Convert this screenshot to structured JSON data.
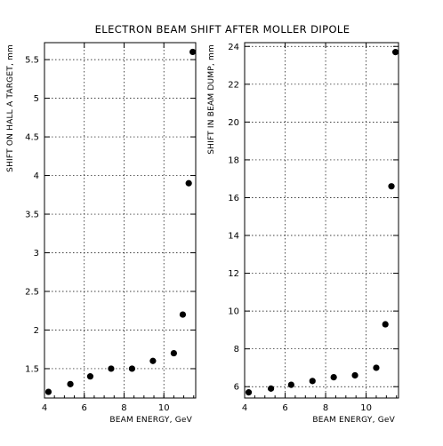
{
  "title": "ELECTRON BEAM SHIFT AFTER MOLLER DIPOLE",
  "colors": {
    "marker": "#000000",
    "grid": "#000000"
  },
  "chart_data": [
    {
      "type": "scatter",
      "xlabel": "BEAM ENERGY, GeV",
      "ylabel": "SHIFT ON HALL A TARGET, mm",
      "xlim": [
        4,
        11.6
      ],
      "ylim": [
        1.12,
        5.72
      ],
      "xticks": [
        4,
        6,
        8,
        10
      ],
      "xtick_labels": [
        "4",
        "6",
        "8",
        "10"
      ],
      "yticks": [
        1.5,
        2,
        2.5,
        3,
        3.5,
        4,
        4.5,
        5,
        5.5
      ],
      "ytick_labels": [
        "1.5",
        "2",
        "2.5",
        "3",
        "3.5",
        "4",
        "4.5",
        "5",
        "5.5"
      ],
      "grid": true,
      "x": [
        4.2,
        5.3,
        6.3,
        7.35,
        8.4,
        9.45,
        10.5,
        10.95,
        11.25,
        11.45
      ],
      "y": [
        1.2,
        1.3,
        1.4,
        1.5,
        1.5,
        1.6,
        1.7,
        2.2,
        3.9,
        5.6
      ]
    },
    {
      "type": "scatter",
      "xlabel": "BEAM ENERGY, GeV",
      "ylabel": "SHIFT IN BEAM DUMP, mm",
      "xlim": [
        4,
        11.6
      ],
      "ylim": [
        5.4,
        24.2
      ],
      "xticks": [
        4,
        6,
        8,
        10
      ],
      "xtick_labels": [
        "4",
        "6",
        "8",
        "10"
      ],
      "yticks": [
        6,
        8,
        10,
        12,
        14,
        16,
        18,
        20,
        22,
        24
      ],
      "ytick_labels": [
        "6",
        "8",
        "10",
        "12",
        "14",
        "16",
        "18",
        "20",
        "22",
        "24"
      ],
      "grid": true,
      "x": [
        4.2,
        5.3,
        6.3,
        7.35,
        8.4,
        9.45,
        10.5,
        10.95,
        11.25,
        11.45
      ],
      "y": [
        5.7,
        5.9,
        6.1,
        6.3,
        6.5,
        6.6,
        7.0,
        9.3,
        16.6,
        23.7
      ]
    }
  ]
}
